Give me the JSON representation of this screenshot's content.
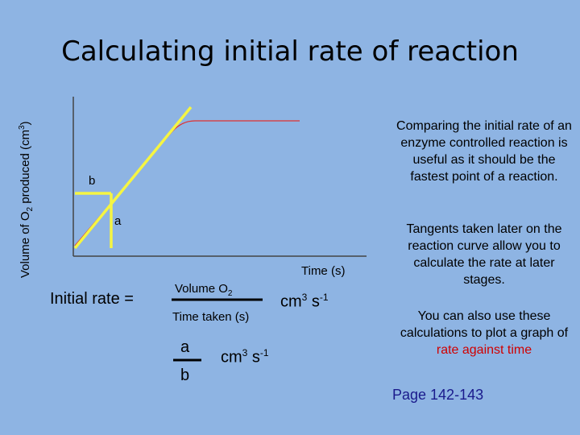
{
  "slide": {
    "title": "Calculating initial rate of reaction",
    "y_axis_label": {
      "pre": "Volume of O",
      "sub": "2",
      "mid": " produced  (cm",
      "sup": "3",
      "post": ")"
    },
    "x_axis_label": "Time (s)",
    "point_labels": {
      "a": "a",
      "b": "b"
    },
    "formula": {
      "lhs": "Initial rate  =",
      "numerator": {
        "pre": "Volume O",
        "sub": "2"
      },
      "denominator": "Time taken (s)",
      "unit1": {
        "base": "cm",
        "exp1": "3",
        "mid": " s",
        "exp2": "-1"
      },
      "frac_top": "a",
      "frac_bottom": "b",
      "unit2": {
        "base": "cm",
        "exp1": "3",
        "mid": "  s",
        "exp2": "-1"
      }
    },
    "paragraphs": {
      "p1": "Comparing the initial rate of an enzyme controlled reaction is useful as it should be the fastest point of a reaction.",
      "p2": "Tangents taken later on the reaction curve allow you to calculate the rate at later stages.",
      "p3_pre": "You can also use these calculations to plot a graph of ",
      "p3_highlight": "rate against time"
    },
    "page_ref": "Page 142-143",
    "colors": {
      "background": "#8eb4e3",
      "curve": "#e03030",
      "tangent": "#f5f542",
      "highlight": "#d00000",
      "page_ref": "#1a1a8c"
    }
  }
}
